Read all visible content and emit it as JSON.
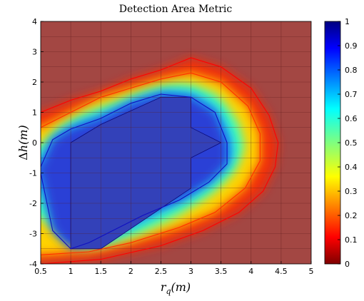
{
  "chart_data": {
    "type": "heatmap",
    "title": "Detection Area Metric",
    "xlabel": "r_q(m)",
    "ylabel": "Δh(m)",
    "xlim": [
      0.5,
      5
    ],
    "ylim": [
      -4,
      4
    ],
    "x_ticks": [
      "0.5",
      "1",
      "1.5",
      "2",
      "2.5",
      "3",
      "3.5",
      "4",
      "4.5",
      "5"
    ],
    "y_ticks": [
      "-4",
      "-3",
      "-2",
      "-1",
      "0",
      "1",
      "2",
      "3",
      "4"
    ],
    "colorbar_ticks": [
      "0",
      "0.1",
      "0.2",
      "0.3",
      "0.4",
      "0.5",
      "0.6",
      "0.7",
      "0.8",
      "0.9",
      "1"
    ],
    "colormap": "jet_reversed",
    "value_range": [
      0,
      1
    ],
    "grid": "on",
    "contour_levels": [
      {
        "level": 0.0,
        "points": [
          [
            0.5,
            1.0
          ],
          [
            1.0,
            1.4
          ],
          [
            1.5,
            1.7
          ],
          [
            2.0,
            2.1
          ],
          [
            2.5,
            2.4
          ],
          [
            3.0,
            2.8
          ],
          [
            3.5,
            2.5
          ],
          [
            4.0,
            1.8
          ],
          [
            4.3,
            0.9
          ],
          [
            4.45,
            0
          ],
          [
            4.4,
            -0.8
          ],
          [
            4.2,
            -1.6
          ],
          [
            3.8,
            -2.3
          ],
          [
            3.2,
            -2.9
          ],
          [
            2.5,
            -3.4
          ],
          [
            1.5,
            -3.85
          ],
          [
            0.5,
            -4.0
          ]
        ]
      },
      {
        "level": 0.05,
        "points": [
          [
            0.5,
            0.5
          ],
          [
            1.0,
            1.0
          ],
          [
            1.5,
            1.5
          ],
          [
            2.0,
            1.8
          ],
          [
            2.5,
            2.1
          ],
          [
            3.0,
            2.3
          ],
          [
            3.5,
            2.0
          ],
          [
            3.95,
            1.2
          ],
          [
            4.15,
            0.3
          ],
          [
            4.15,
            -0.6
          ],
          [
            3.9,
            -1.5
          ],
          [
            3.4,
            -2.3
          ],
          [
            2.8,
            -2.8
          ],
          [
            2.0,
            -3.3
          ],
          [
            1.3,
            -3.6
          ],
          [
            0.5,
            -3.7
          ]
        ]
      },
      {
        "level": 0.95,
        "points": [
          [
            0.5,
            -0.8
          ],
          [
            0.7,
            0.1
          ],
          [
            1.0,
            0.45
          ],
          [
            1.5,
            0.8
          ],
          [
            2.0,
            1.3
          ],
          [
            2.5,
            1.6
          ],
          [
            3.0,
            1.5
          ],
          [
            3.4,
            1.0
          ],
          [
            3.6,
            0
          ],
          [
            3.6,
            -0.7
          ],
          [
            3.3,
            -1.3
          ],
          [
            2.8,
            -1.9
          ],
          [
            2.2,
            -2.4
          ],
          [
            1.7,
            -2.9
          ],
          [
            1.3,
            -3.3
          ],
          [
            1.0,
            -3.5
          ],
          [
            0.7,
            -2.9
          ],
          [
            0.5,
            -1.0
          ]
        ]
      }
    ],
    "plateau_region": [
      [
        1.0,
        0
      ],
      [
        1.5,
        0.6
      ],
      [
        2.5,
        1.5
      ],
      [
        3.0,
        1.5
      ],
      [
        3.0,
        0.5
      ],
      [
        3.5,
        0
      ],
      [
        3.0,
        -0.5
      ],
      [
        3.0,
        -1.5
      ],
      [
        1.5,
        -3.5
      ],
      [
        1.0,
        -3.5
      ],
      [
        1.0,
        0
      ]
    ]
  }
}
